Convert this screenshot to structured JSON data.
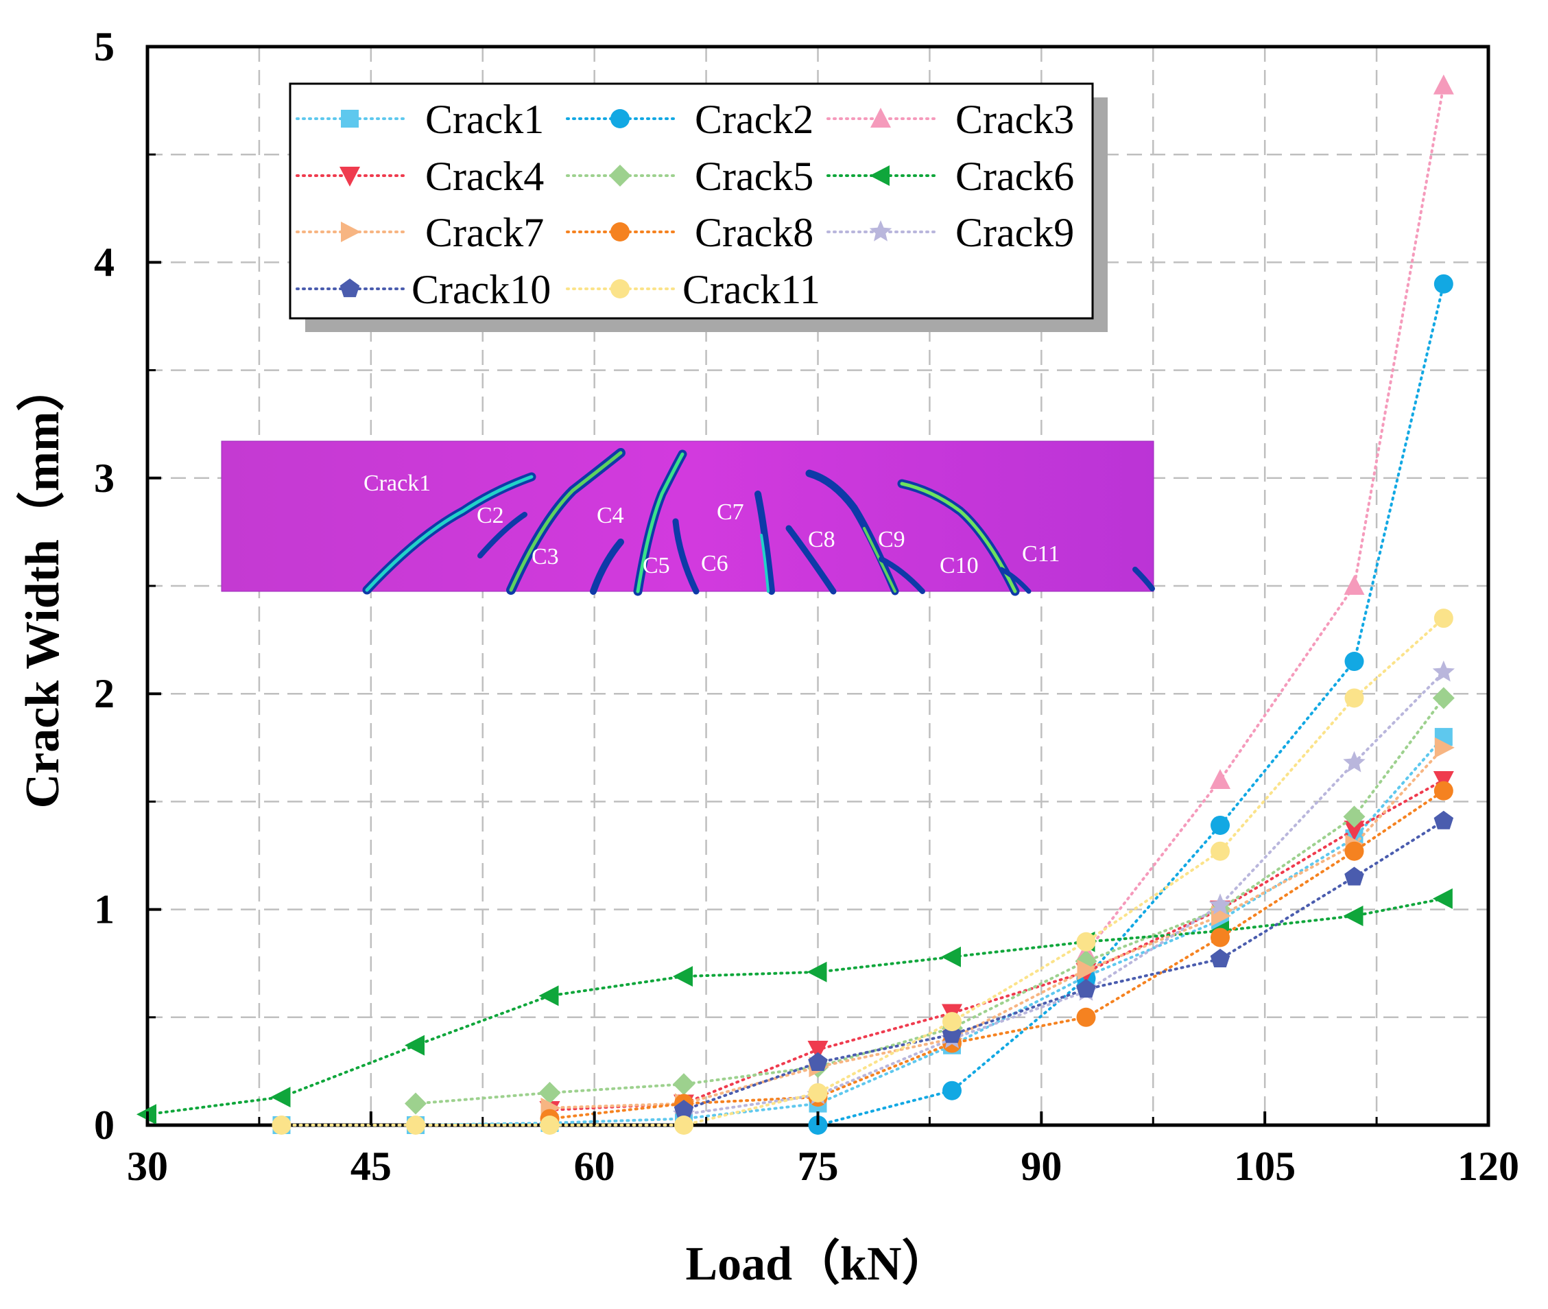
{
  "chart_data": {
    "type": "line",
    "title": "",
    "xlabel": "Load（kN）",
    "ylabel": "Crack Width（mm）",
    "xlim": [
      30,
      120
    ],
    "ylim": [
      0,
      5
    ],
    "xticks": [
      "30",
      "45",
      "60",
      "75",
      "90",
      "105",
      "120"
    ],
    "yticks": [
      "0",
      "1",
      "2",
      "3",
      "4",
      "5"
    ],
    "grid": true,
    "legend_position": "top-left",
    "series": [
      {
        "name": "Crack1",
        "color": "#5ec8ee",
        "marker": "square",
        "x": [
          39,
          48,
          57,
          66,
          75,
          84,
          93,
          102,
          111,
          117
        ],
        "y": [
          0,
          0,
          0.01,
          0.03,
          0.1,
          0.37,
          0.69,
          0.95,
          1.33,
          1.8
        ]
      },
      {
        "name": "Crack2",
        "color": "#12a8e3",
        "marker": "circle",
        "x": [
          75,
          84,
          93,
          102,
          111,
          117
        ],
        "y": [
          0,
          0.16,
          0.68,
          1.39,
          2.15,
          3.9
        ]
      },
      {
        "name": "Crack3",
        "color": "#f59abb",
        "marker": "triangle-up",
        "x": [
          93,
          102,
          111,
          117
        ],
        "y": [
          0.8,
          1.6,
          2.5,
          4.82
        ]
      },
      {
        "name": "Crack4",
        "color": "#ef3b4e",
        "marker": "triangle-down",
        "x": [
          57,
          66,
          75,
          84,
          93,
          102,
          111,
          117
        ],
        "y": [
          0.07,
          0.1,
          0.35,
          0.52,
          0.71,
          1.0,
          1.37,
          1.6
        ]
      },
      {
        "name": "Crack5",
        "color": "#9dd18e",
        "marker": "diamond",
        "x": [
          48,
          57,
          66,
          75,
          84,
          93,
          102,
          111,
          117
        ],
        "y": [
          0.1,
          0.15,
          0.19,
          0.27,
          0.45,
          0.76,
          1.0,
          1.43,
          1.98
        ]
      },
      {
        "name": "Crack6",
        "color": "#0fa63b",
        "marker": "triangle-left",
        "x": [
          30,
          39,
          48,
          57,
          66,
          75,
          84,
          93,
          102,
          111,
          117
        ],
        "y": [
          0.05,
          0.13,
          0.37,
          0.6,
          0.69,
          0.71,
          0.78,
          0.85,
          0.9,
          0.97,
          1.05
        ]
      },
      {
        "name": "Crack7",
        "color": "#f7b582",
        "marker": "triangle-right",
        "x": [
          57,
          66,
          75,
          84,
          93,
          102,
          111,
          117
        ],
        "y": [
          0.08,
          0.1,
          0.27,
          0.4,
          0.72,
          0.97,
          1.3,
          1.75
        ]
      },
      {
        "name": "Crack8",
        "color": "#f58220",
        "marker": "circle",
        "x": [
          57,
          66,
          75,
          84,
          93,
          102,
          111,
          117
        ],
        "y": [
          0.03,
          0.1,
          0.13,
          0.38,
          0.5,
          0.87,
          1.27,
          1.55
        ]
      },
      {
        "name": "Crack9",
        "color": "#b9b6dc",
        "marker": "star",
        "x": [
          66,
          75,
          84,
          93,
          102,
          111,
          117
        ],
        "y": [
          0.05,
          0.14,
          0.4,
          0.62,
          1.02,
          1.68,
          2.1
        ]
      },
      {
        "name": "Crack10",
        "color": "#4a5cae",
        "marker": "pentagon",
        "x": [
          66,
          75,
          84,
          93,
          102,
          111,
          117
        ],
        "y": [
          0.07,
          0.29,
          0.42,
          0.63,
          0.77,
          1.15,
          1.41
        ]
      },
      {
        "name": "Crack11",
        "color": "#fbe38a",
        "marker": "circle",
        "x": [
          39,
          48,
          57,
          66,
          75,
          84,
          93,
          102,
          111,
          117
        ],
        "y": [
          0,
          0,
          0,
          0,
          0.15,
          0.48,
          0.85,
          1.27,
          1.98,
          2.35
        ]
      }
    ],
    "inset_photo": {
      "description_labels": [
        "Crack1",
        "C2",
        "C3",
        "C4",
        "C5",
        "C6",
        "C7",
        "C8",
        "C9",
        "C10",
        "C11"
      ]
    }
  }
}
